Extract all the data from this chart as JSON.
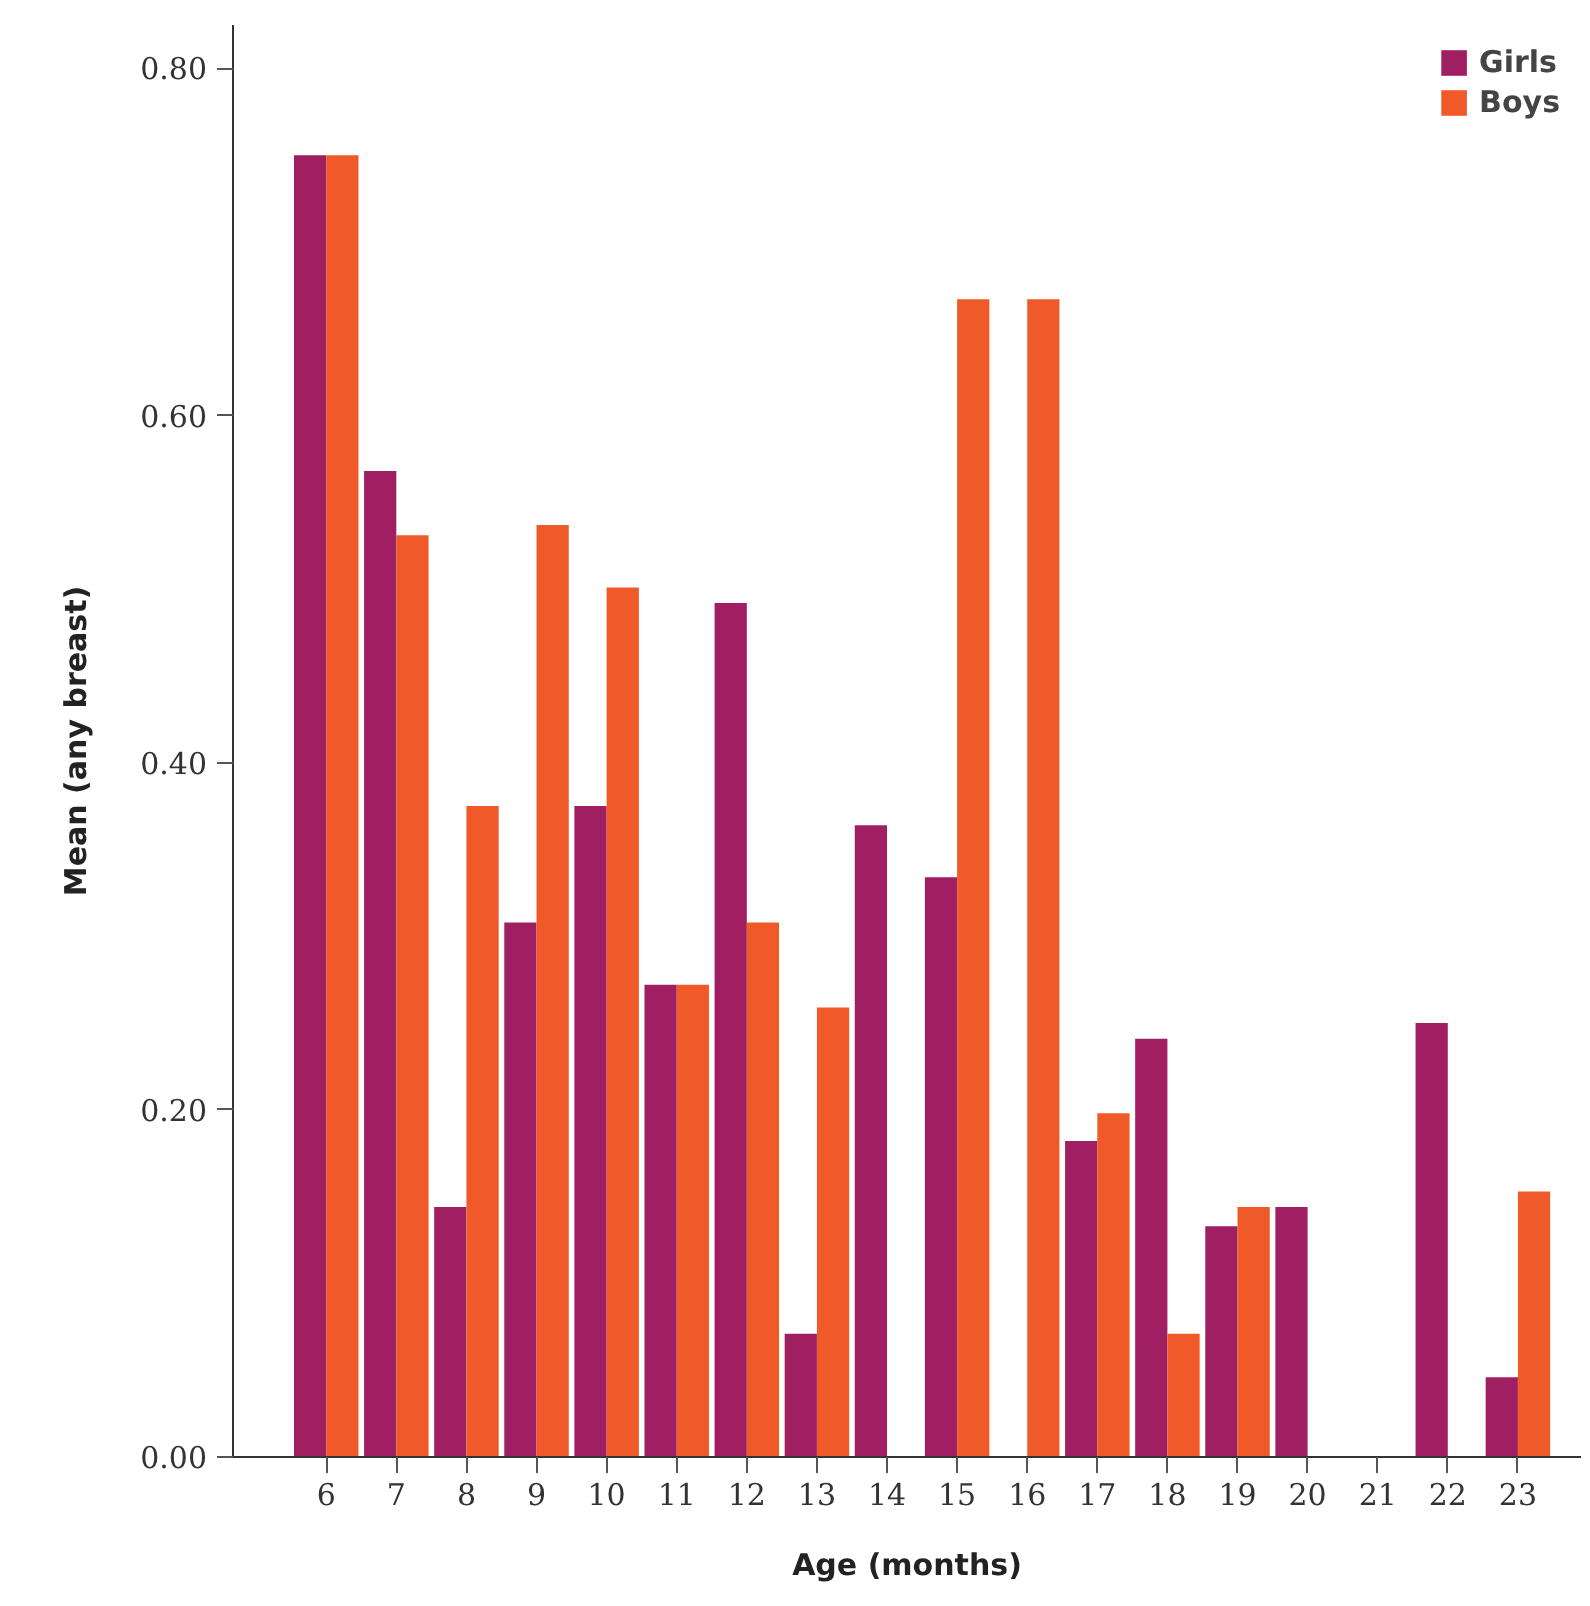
{
  "chart_data": {
    "type": "bar",
    "xlabel": "Age (months)",
    "ylabel": "Mean (any breast)",
    "categories": [
      "6",
      "7",
      "8",
      "9",
      "10",
      "11",
      "12",
      "13",
      "14",
      "15",
      "16",
      "17",
      "18",
      "19",
      "20",
      "21",
      "22",
      "23"
    ],
    "series": [
      {
        "name": "Girls",
        "color": "#a01f62",
        "values": [
          0.75,
          0.568,
          0.144,
          0.308,
          0.375,
          0.272,
          0.492,
          0.071,
          0.364,
          0.334,
          null,
          0.182,
          0.241,
          0.133,
          0.144,
          null,
          0.25,
          0.046
        ]
      },
      {
        "name": "Boys",
        "color": "#f05a28",
        "values": [
          0.75,
          0.531,
          0.375,
          0.537,
          0.501,
          0.272,
          0.308,
          0.259,
          null,
          0.667,
          0.667,
          0.198,
          0.071,
          0.144,
          null,
          null,
          null,
          0.153
        ]
      }
    ],
    "ylim": [
      0,
      0.825
    ],
    "yticks": [
      {
        "value": 0,
        "label": "0.00"
      },
      {
        "value": 0.2,
        "label": "0.20"
      },
      {
        "value": 0.4,
        "label": "0.40"
      },
      {
        "value": 0.6,
        "label": "0.60"
      },
      {
        "value": 0.8,
        "label": "0.80"
      }
    ],
    "grid": false,
    "legend": "top right"
  }
}
